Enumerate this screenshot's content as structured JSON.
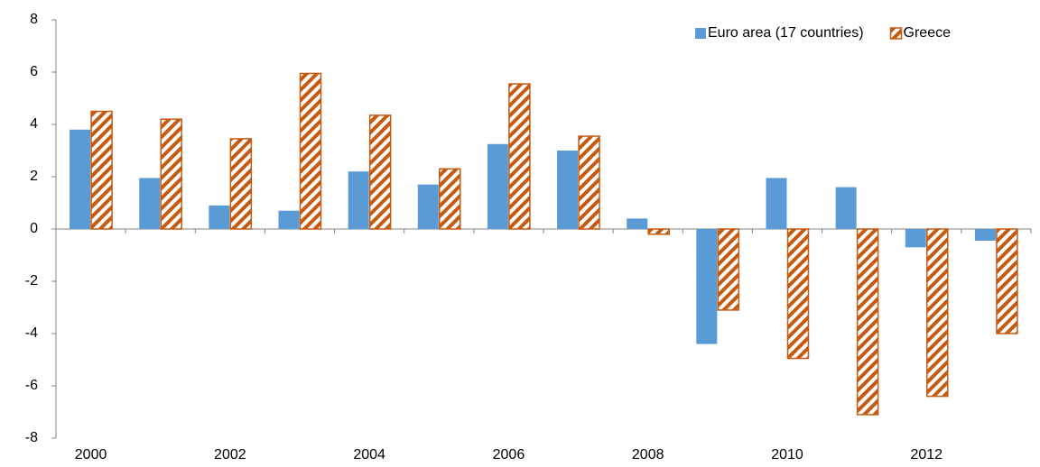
{
  "chart_data": {
    "type": "bar",
    "categories": [
      "2000",
      null,
      "2002",
      null,
      "2004",
      null,
      "2006",
      null,
      "2008",
      null,
      "2010",
      null,
      "2012",
      null
    ],
    "series": [
      {
        "name": "Euro area (17 countries)",
        "color": "#5b9bd5",
        "pattern": "solid",
        "values": [
          3.8,
          1.95,
          0.9,
          0.7,
          2.2,
          1.7,
          3.25,
          3.0,
          0.4,
          -4.4,
          1.95,
          1.6,
          -0.7,
          -0.45
        ]
      },
      {
        "name": "Greece",
        "color": "#c55a11",
        "pattern": "hatch",
        "values": [
          4.5,
          4.2,
          3.45,
          5.95,
          4.35,
          2.3,
          5.55,
          3.55,
          -0.2,
          -3.1,
          -4.95,
          -7.1,
          -6.4,
          -4.0
        ]
      }
    ],
    "ylim": [
      -8,
      8
    ],
    "yticks": [
      -8,
      -6,
      -4,
      -2,
      0,
      2,
      4,
      6,
      8
    ],
    "grid": false,
    "legend": "top-right"
  }
}
